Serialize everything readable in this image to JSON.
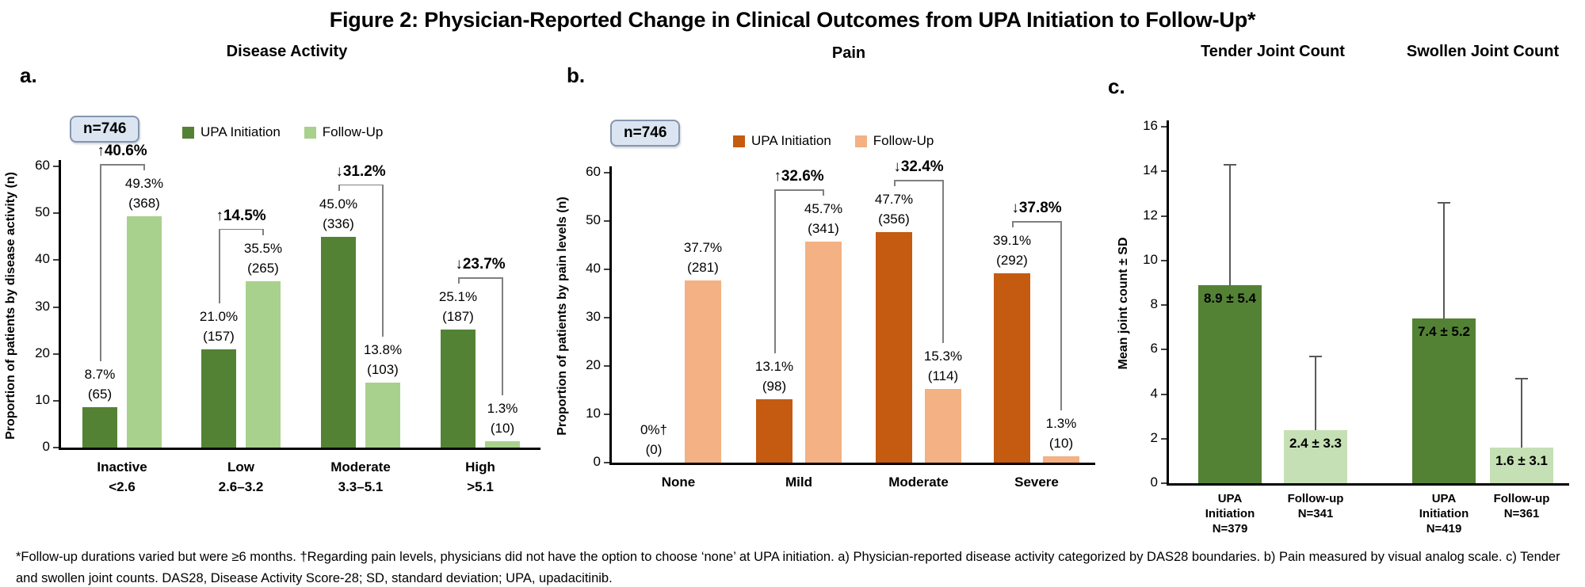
{
  "figure_title": "Figure 2: Physician-Reported Change in Clinical Outcomes from UPA Initiation to Follow-Up*",
  "footnote": "*Follow-up durations varied but were ≥6 months. †Regarding pain levels, physicians did not have the option to choose ‘none’ at UPA initiation. a) Physician-reported disease activity categorized by DAS28 boundaries. b) Pain measured by visual analog scale. c) Tender and swollen joint counts. DAS28, Disease Activity Score-28; SD, standard deviation; UPA, upadacitinib.",
  "colors": {
    "dark_green": "#548235",
    "light_green": "#A9D18E",
    "pale_green": "#C5E0B4",
    "dark_orange": "#C55A11",
    "light_orange": "#F4B183",
    "axis": "#000000",
    "bracket": "#7F7F7F",
    "whisker": "#595959",
    "badge_bg": "#DBE5F1",
    "badge_border": "#8496B0"
  },
  "chart_data": [
    {
      "id": "a",
      "type": "bar",
      "panel_label": "a.",
      "title": "Disease Activity",
      "n_badge": "n=746",
      "ylabel": "Proportion of patients by disease activity (n)",
      "ylim": [
        0,
        60
      ],
      "yticks": [
        0,
        10,
        20,
        30,
        40,
        50,
        60
      ],
      "categories": [
        [
          "Inactive",
          "<2.6"
        ],
        [
          "Low",
          "2.6–3.2"
        ],
        [
          "Moderate",
          "3.3–5.1"
        ],
        [
          "High",
          ">5.1"
        ]
      ],
      "series": [
        {
          "name": "UPA Initiation",
          "color_key": "dark_green",
          "values": [
            8.7,
            21.0,
            45.0,
            25.1
          ],
          "counts": [
            65,
            157,
            336,
            187
          ],
          "labels": [
            [
              "8.7%",
              "(65)"
            ],
            [
              "21.0%",
              "(157)"
            ],
            [
              "45.0%",
              "(336)"
            ],
            [
              "25.1%",
              "(187)"
            ]
          ]
        },
        {
          "name": "Follow-Up",
          "color_key": "light_green",
          "values": [
            49.3,
            35.5,
            13.8,
            1.3
          ],
          "counts": [
            368,
            265,
            103,
            10
          ],
          "labels": [
            [
              "49.3%",
              "(368)"
            ],
            [
              "35.5%",
              "(265)"
            ],
            [
              "13.8%",
              "(103)"
            ],
            [
              "1.3%",
              "(10)"
            ]
          ]
        }
      ],
      "change_labels": [
        "↑40.6%",
        "↑14.5%",
        "↓31.2%",
        "↓23.7%"
      ]
    },
    {
      "id": "b",
      "type": "bar",
      "panel_label": "b.",
      "title": "Pain",
      "n_badge": "n=746",
      "ylabel": "Proportion of patients by pain levels (n)",
      "ylim": [
        0,
        60
      ],
      "yticks": [
        0,
        10,
        20,
        30,
        40,
        50,
        60
      ],
      "categories": [
        [
          "None"
        ],
        [
          "Mild"
        ],
        [
          "Moderate"
        ],
        [
          "Severe"
        ]
      ],
      "series": [
        {
          "name": "UPA Initiation",
          "color_key": "dark_orange",
          "values": [
            0,
            13.1,
            47.7,
            39.1
          ],
          "counts": [
            0,
            98,
            356,
            292
          ],
          "labels": [
            [
              "0%†",
              "(0)"
            ],
            [
              "13.1%",
              "(98)"
            ],
            [
              "47.7%",
              "(356)"
            ],
            [
              "39.1%",
              "(292)"
            ]
          ]
        },
        {
          "name": "Follow-Up",
          "color_key": "light_orange",
          "values": [
            37.7,
            45.7,
            15.3,
            1.3
          ],
          "counts": [
            281,
            341,
            114,
            10
          ],
          "labels": [
            [
              "37.7%",
              "(281)"
            ],
            [
              "45.7%",
              "(341)"
            ],
            [
              "15.3%",
              "(114)"
            ],
            [
              "1.3%",
              "(10)"
            ]
          ]
        }
      ],
      "change_labels": [
        "",
        "↑32.6%",
        "↓32.4%",
        "↓37.8%"
      ]
    },
    {
      "id": "c",
      "type": "bar",
      "panel_label": "c.",
      "titles": [
        "Tender Joint Count",
        "Swollen Joint Count"
      ],
      "ylabel": "Mean joint count ± SD",
      "ylim": [
        0,
        16
      ],
      "yticks": [
        0,
        2,
        4,
        6,
        8,
        10,
        12,
        14,
        16
      ],
      "bars": [
        {
          "group": "Tender Joint Count",
          "xlabel_lines": [
            "UPA",
            "Initiation",
            "N=379"
          ],
          "mean": 8.9,
          "sd": 5.4,
          "label": "8.9 ± 5.4",
          "color_key": "dark_green"
        },
        {
          "group": "Tender Joint Count",
          "xlabel_lines": [
            "Follow-up",
            "N=341"
          ],
          "mean": 2.4,
          "sd": 3.3,
          "label": "2.4 ± 3.3",
          "color_key": "pale_green"
        },
        {
          "group": "Swollen Joint Count",
          "xlabel_lines": [
            "UPA",
            "Initiation",
            "N=419"
          ],
          "mean": 7.4,
          "sd": 5.2,
          "label": "7.4 ± 5.2",
          "color_key": "dark_green"
        },
        {
          "group": "Swollen Joint Count",
          "xlabel_lines": [
            "Follow-up",
            "N=361"
          ],
          "mean": 1.6,
          "sd": 3.1,
          "label": "1.6 ± 3.1",
          "color_key": "pale_green"
        }
      ]
    }
  ]
}
